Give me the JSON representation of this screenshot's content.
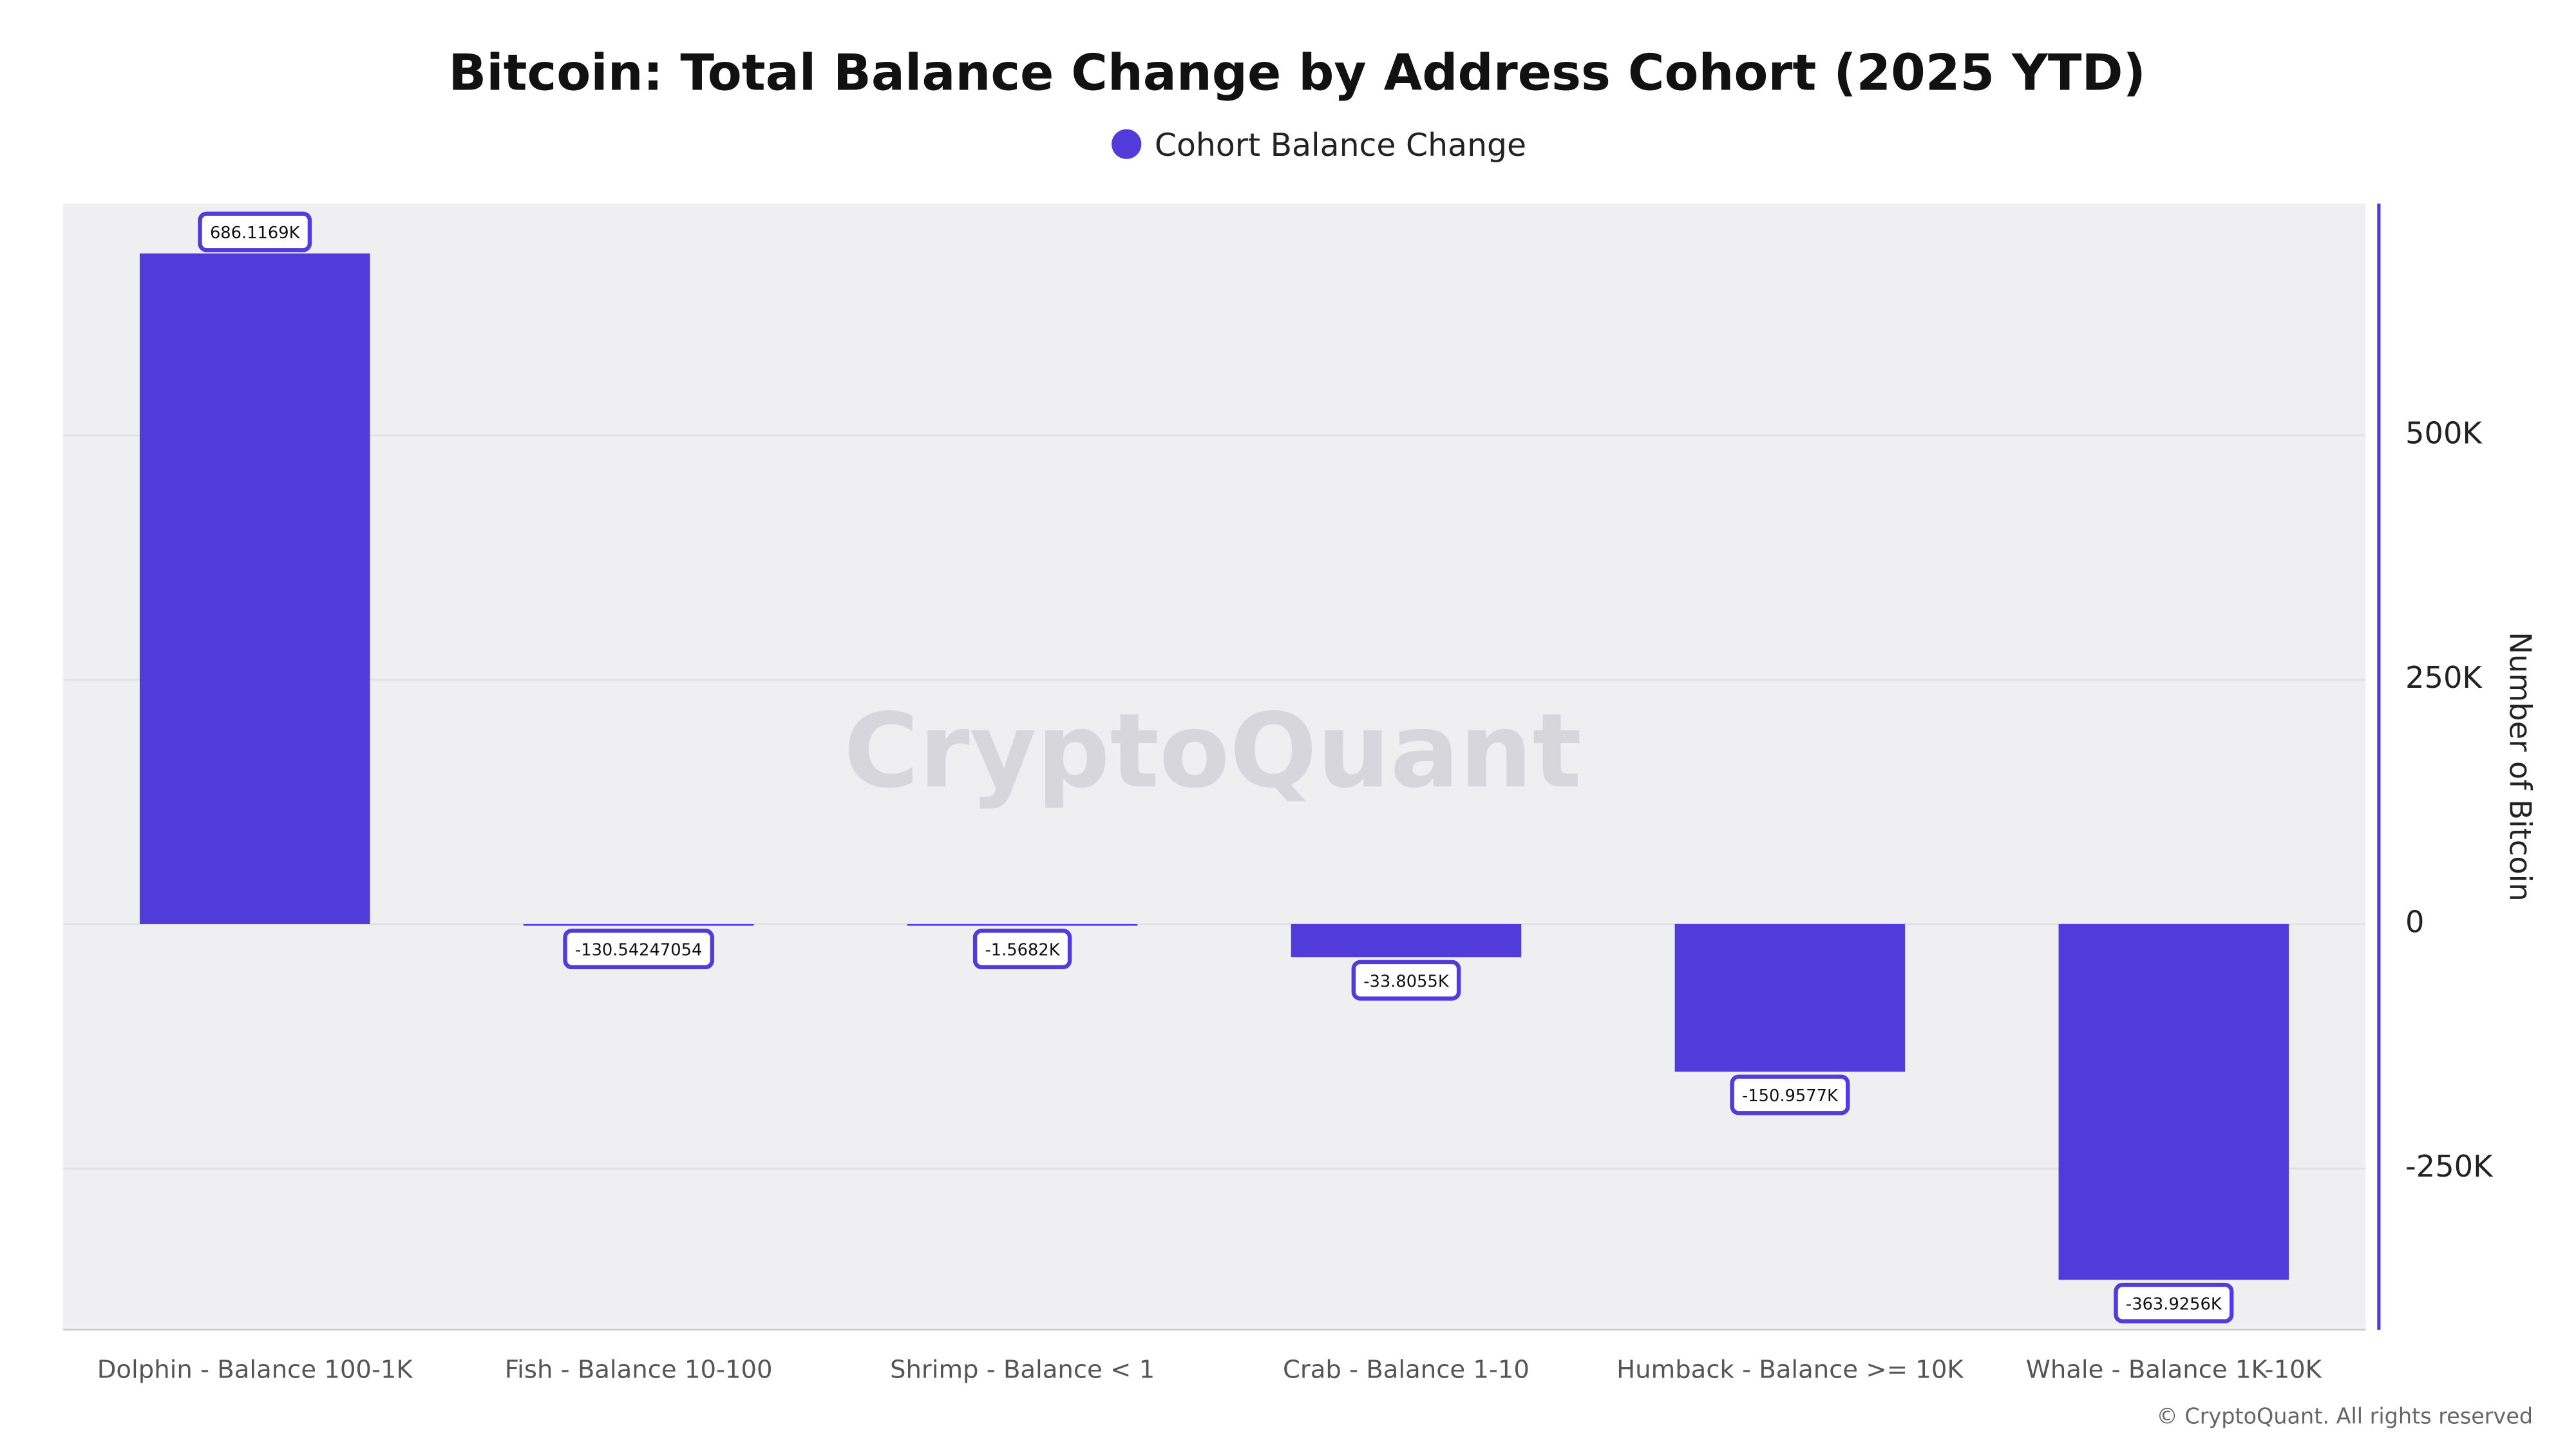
{
  "chart_data": {
    "type": "bar",
    "title": "Bitcoin: Total Balance Change by Address Cohort (2025 YTD)",
    "categories": [
      "Dolphin - Balance 100-1K",
      "Fish - Balance 10-100",
      "Shrimp - Balance < 1",
      "Crab - Balance 1-10",
      "Humback - Balance >= 10K",
      "Whale - Balance 1K-10K"
    ],
    "series": [
      {
        "name": "Cohort Balance Change",
        "color": "#513bdb",
        "values": [
          686116.9,
          -130.54247054,
          -1568.2,
          -33805.5,
          -150957.7,
          -363925.6
        ],
        "value_labels": [
          "686.1169K",
          "-130.54247054",
          "-1.5682K",
          "-33.8055K",
          "-150.9577K",
          "-363.9256K"
        ]
      }
    ],
    "y_axis_label": "Number of Bitcoin",
    "ylim": [
      -415000,
      737000
    ],
    "yticks": [
      {
        "value": -250000,
        "label": "-250K"
      },
      0,
      {
        "value": 250000,
        "label": "250K"
      },
      {
        "value": 500000,
        "label": "500K"
      }
    ],
    "grid": true,
    "watermark": "CryptoQuant",
    "footer": "© CryptoQuant. All rights reserved"
  }
}
